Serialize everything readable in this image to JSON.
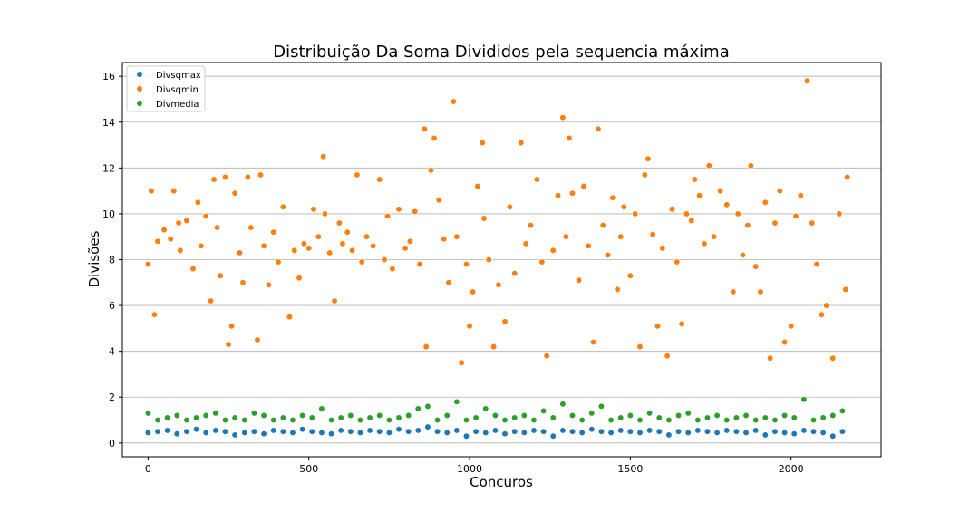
{
  "chart_data": {
    "type": "scatter",
    "title": "Distribuição Da Soma Divididos pela sequencia máxima",
    "xlabel": "Concuros",
    "ylabel": "Divisões",
    "xlim": [
      -80,
      2280
    ],
    "ylim": [
      -0.6,
      16.6
    ],
    "xticks": [
      0,
      500,
      1000,
      1500,
      2000
    ],
    "yticks": [
      0,
      2,
      4,
      6,
      8,
      10,
      12,
      14,
      16
    ],
    "xtick_labels": [
      "0",
      "500",
      "1000",
      "1500",
      "2000"
    ],
    "ytick_labels": [
      "0",
      "2",
      "4",
      "6",
      "8",
      "10",
      "12",
      "14",
      "16"
    ],
    "grid": "horizontal",
    "legend_position": "top-left",
    "series": [
      {
        "name": "Divsqmax",
        "color": "#1f77b4",
        "x": [
          0,
          30,
          60,
          90,
          120,
          150,
          180,
          210,
          240,
          270,
          300,
          330,
          360,
          390,
          420,
          450,
          480,
          510,
          540,
          570,
          600,
          630,
          660,
          690,
          720,
          750,
          780,
          810,
          840,
          870,
          900,
          930,
          960,
          990,
          1020,
          1050,
          1080,
          1110,
          1140,
          1170,
          1200,
          1230,
          1260,
          1290,
          1320,
          1350,
          1380,
          1410,
          1440,
          1470,
          1500,
          1530,
          1560,
          1590,
          1620,
          1650,
          1680,
          1710,
          1740,
          1770,
          1800,
          1830,
          1860,
          1890,
          1920,
          1950,
          1980,
          2010,
          2040,
          2070,
          2100,
          2130,
          2160
        ],
        "y": [
          0.45,
          0.5,
          0.55,
          0.4,
          0.5,
          0.6,
          0.45,
          0.55,
          0.5,
          0.35,
          0.45,
          0.5,
          0.4,
          0.55,
          0.5,
          0.45,
          0.6,
          0.5,
          0.45,
          0.4,
          0.55,
          0.5,
          0.45,
          0.55,
          0.5,
          0.45,
          0.6,
          0.5,
          0.55,
          0.7,
          0.5,
          0.45,
          0.55,
          0.3,
          0.5,
          0.45,
          0.55,
          0.4,
          0.5,
          0.45,
          0.55,
          0.5,
          0.3,
          0.55,
          0.5,
          0.45,
          0.6,
          0.5,
          0.45,
          0.55,
          0.5,
          0.45,
          0.55,
          0.5,
          0.35,
          0.5,
          0.45,
          0.55,
          0.5,
          0.45,
          0.55,
          0.5,
          0.45,
          0.55,
          0.35,
          0.5,
          0.45,
          0.4,
          0.55,
          0.5,
          0.45,
          0.3,
          0.5
        ]
      },
      {
        "name": "Divsqmin",
        "color": "#ff7f0e",
        "x": [
          0,
          10,
          20,
          30,
          50,
          70,
          80,
          95,
          100,
          120,
          140,
          155,
          165,
          180,
          195,
          205,
          215,
          225,
          240,
          250,
          260,
          270,
          285,
          295,
          310,
          320,
          340,
          350,
          360,
          375,
          390,
          405,
          420,
          440,
          455,
          470,
          485,
          500,
          515,
          530,
          545,
          550,
          565,
          580,
          595,
          605,
          620,
          635,
          650,
          665,
          680,
          700,
          720,
          735,
          745,
          760,
          780,
          800,
          815,
          830,
          845,
          860,
          865,
          880,
          890,
          905,
          920,
          935,
          950,
          960,
          975,
          990,
          1000,
          1010,
          1025,
          1040,
          1045,
          1060,
          1075,
          1090,
          1110,
          1125,
          1140,
          1160,
          1175,
          1190,
          1210,
          1225,
          1240,
          1260,
          1275,
          1290,
          1300,
          1310,
          1320,
          1340,
          1355,
          1370,
          1385,
          1400,
          1415,
          1430,
          1445,
          1460,
          1470,
          1480,
          1500,
          1515,
          1530,
          1545,
          1555,
          1570,
          1585,
          1600,
          1615,
          1630,
          1645,
          1660,
          1675,
          1690,
          1700,
          1715,
          1730,
          1745,
          1760,
          1780,
          1800,
          1820,
          1835,
          1850,
          1865,
          1875,
          1890,
          1905,
          1920,
          1935,
          1950,
          1965,
          1980,
          2000,
          2015,
          2030,
          2050,
          2065,
          2080,
          2095,
          2110,
          2130,
          2150,
          2170,
          2175
        ],
        "y": [
          7.8,
          11.0,
          5.6,
          8.8,
          9.3,
          8.9,
          11.0,
          9.6,
          8.4,
          9.7,
          7.6,
          10.5,
          8.6,
          9.9,
          6.2,
          11.5,
          9.4,
          7.3,
          11.6,
          4.3,
          5.1,
          10.9,
          8.3,
          7.0,
          11.6,
          9.4,
          4.5,
          11.7,
          8.6,
          6.9,
          9.2,
          7.9,
          10.3,
          5.5,
          8.4,
          7.2,
          8.7,
          8.5,
          10.2,
          9.0,
          12.5,
          10.0,
          8.3,
          6.2,
          9.6,
          8.7,
          9.2,
          8.4,
          11.7,
          7.9,
          9.0,
          8.6,
          11.5,
          8.0,
          9.9,
          7.6,
          10.2,
          8.5,
          8.8,
          10.1,
          7.8,
          13.7,
          4.2,
          11.9,
          13.3,
          10.6,
          8.9,
          7.0,
          14.9,
          9.0,
          3.5,
          7.8,
          5.1,
          6.6,
          11.2,
          13.1,
          9.8,
          8.0,
          4.2,
          6.9,
          5.3,
          10.3,
          7.4,
          13.1,
          8.7,
          9.5,
          11.5,
          7.9,
          3.8,
          8.4,
          10.8,
          14.2,
          9.0,
          13.3,
          10.9,
          7.1,
          11.2,
          8.6,
          4.4,
          13.7,
          9.5,
          8.2,
          10.7,
          6.7,
          9.0,
          10.3,
          7.3,
          10.0,
          4.2,
          11.7,
          12.4,
          9.1,
          5.1,
          8.5,
          3.8,
          10.2,
          7.9,
          5.2,
          10.0,
          9.7,
          11.5,
          10.8,
          8.7,
          12.1,
          9.0,
          11.0,
          10.4,
          6.6,
          10.0,
          8.2,
          9.5,
          12.1,
          7.7,
          6.6,
          10.5,
          3.7,
          9.6,
          11.0,
          4.4,
          5.1,
          9.9,
          10.8,
          15.8,
          9.6,
          7.8,
          5.6,
          6.0,
          3.7,
          10.0,
          6.7,
          11.6
        ]
      },
      {
        "name": "Divmedia",
        "color": "#2ca02c",
        "x": [
          0,
          30,
          60,
          90,
          120,
          150,
          180,
          210,
          240,
          270,
          300,
          330,
          360,
          390,
          420,
          450,
          480,
          510,
          540,
          570,
          600,
          630,
          660,
          690,
          720,
          750,
          780,
          810,
          840,
          870,
          900,
          930,
          960,
          990,
          1020,
          1050,
          1080,
          1110,
          1140,
          1170,
          1200,
          1230,
          1260,
          1290,
          1320,
          1350,
          1380,
          1410,
          1440,
          1470,
          1500,
          1530,
          1560,
          1590,
          1620,
          1650,
          1680,
          1710,
          1740,
          1770,
          1800,
          1830,
          1860,
          1890,
          1920,
          1950,
          1980,
          2010,
          2040,
          2070,
          2100,
          2130,
          2160
        ],
        "y": [
          1.3,
          1.0,
          1.1,
          1.2,
          1.0,
          1.1,
          1.2,
          1.3,
          1.0,
          1.1,
          1.0,
          1.3,
          1.2,
          1.0,
          1.1,
          1.0,
          1.2,
          1.1,
          1.5,
          1.0,
          1.1,
          1.2,
          1.0,
          1.1,
          1.2,
          1.0,
          1.1,
          1.2,
          1.5,
          1.6,
          1.0,
          1.2,
          1.8,
          1.0,
          1.1,
          1.5,
          1.2,
          1.0,
          1.1,
          1.2,
          1.0,
          1.4,
          1.1,
          1.7,
          1.2,
          1.0,
          1.3,
          1.6,
          1.0,
          1.1,
          1.2,
          1.0,
          1.3,
          1.1,
          1.0,
          1.2,
          1.3,
          1.0,
          1.1,
          1.2,
          1.0,
          1.1,
          1.2,
          1.0,
          1.1,
          1.0,
          1.2,
          1.1,
          1.9,
          1.0,
          1.1,
          1.2,
          1.4
        ]
      }
    ]
  }
}
